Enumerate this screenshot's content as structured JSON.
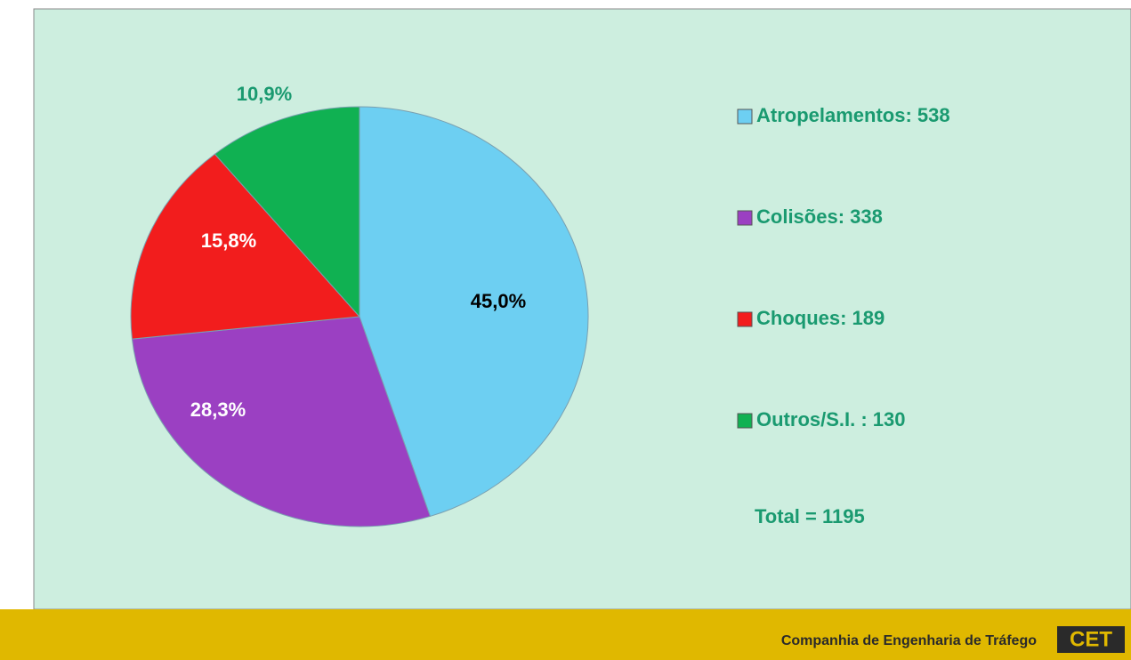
{
  "chart_data": {
    "type": "pie",
    "categories": [
      "Atropelamentos: 538",
      "Colisões: 338",
      "Choques: 189",
      "Outros/S.I. : 130"
    ],
    "values": [
      45.0,
      28.3,
      15.8,
      10.9
    ],
    "value_labels": [
      "45,0%",
      "28,3%",
      "15,8%",
      "10,9%"
    ],
    "colors": [
      "#6dcff2",
      "#9b40c2",
      "#f21d1d",
      "#10b152"
    ],
    "legend": "right",
    "total": "Total = 1195"
  },
  "footer": {
    "text": "Companhia de Engenharia de Tráfego",
    "logo": "CET"
  }
}
